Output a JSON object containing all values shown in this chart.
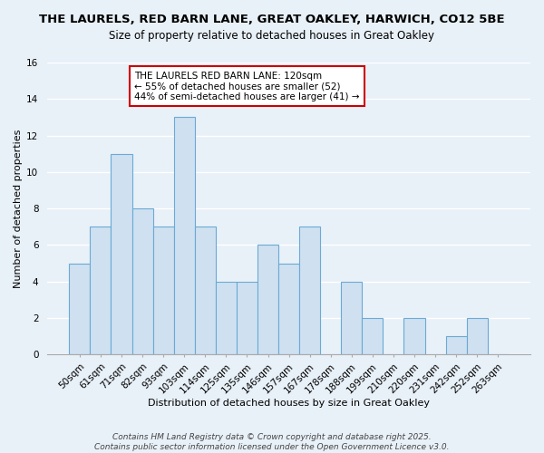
{
  "title": "THE LAURELS, RED BARN LANE, GREAT OAKLEY, HARWICH, CO12 5BE",
  "subtitle": "Size of property relative to detached houses in Great Oakley",
  "xlabel": "Distribution of detached houses by size in Great Oakley",
  "ylabel": "Number of detached properties",
  "bar_labels": [
    "50sqm",
    "61sqm",
    "71sqm",
    "82sqm",
    "93sqm",
    "103sqm",
    "114sqm",
    "125sqm",
    "135sqm",
    "146sqm",
    "157sqm",
    "167sqm",
    "178sqm",
    "188sqm",
    "199sqm",
    "210sqm",
    "220sqm",
    "231sqm",
    "242sqm",
    "252sqm",
    "263sqm"
  ],
  "bar_values": [
    5,
    7,
    11,
    8,
    7,
    13,
    7,
    4,
    4,
    6,
    5,
    7,
    0,
    4,
    2,
    0,
    2,
    0,
    1,
    2,
    0
  ],
  "bar_color": "#cfe0f0",
  "bar_edge_color": "#6aaad4",
  "background_color": "#e8f0f8",
  "grid_color": "#ffffff",
  "ylim": [
    0,
    16
  ],
  "yticks": [
    0,
    2,
    4,
    6,
    8,
    10,
    12,
    14,
    16
  ],
  "annotation_title": "THE LAURELS RED BARN LANE: 120sqm",
  "annotation_line1": "← 55% of detached houses are smaller (52)",
  "annotation_line2": "44% of semi-detached houses are larger (41) →",
  "annotation_box_edge_color": "#cc0000",
  "footer_line1": "Contains HM Land Registry data © Crown copyright and database right 2025.",
  "footer_line2": "Contains public sector information licensed under the Open Government Licence v3.0.",
  "title_fontsize": 9.5,
  "subtitle_fontsize": 8.5,
  "xlabel_fontsize": 8,
  "ylabel_fontsize": 8,
  "tick_fontsize": 7.5,
  "footer_fontsize": 6.5,
  "annotation_fontsize": 7.5
}
